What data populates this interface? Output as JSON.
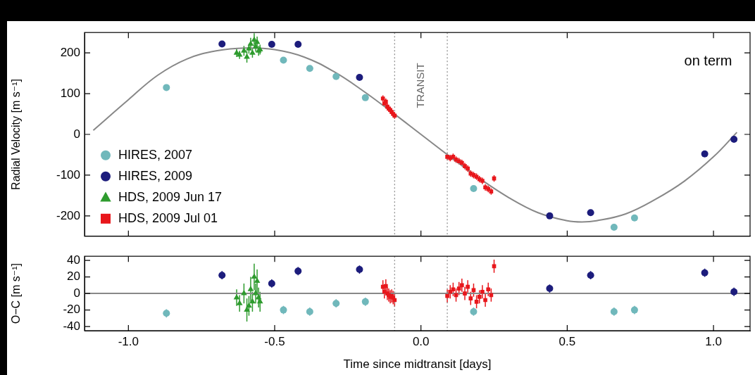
{
  "chart_data": [
    {
      "type": "scatter",
      "y_label": "Radial Velocity [m s⁻¹]",
      "xlim": [
        -1.15,
        1.125
      ],
      "xticks": [
        {
          "value": -1,
          "label": "-1.0"
        },
        {
          "value": -0.5,
          "label": "-0.5"
        },
        {
          "value": 0,
          "label": "0.0"
        },
        {
          "value": 0.5,
          "label": "0.5"
        },
        {
          "value": 1,
          "label": "1.0"
        }
      ],
      "ylim": [
        -250,
        250
      ],
      "yticks": [
        -200,
        -100,
        0,
        100,
        200
      ],
      "grid": false,
      "tick_labels": "y",
      "legend": "lower left",
      "vlines": {
        "x": [
          -0.09,
          0.09
        ],
        "label": "TRANSIT",
        "label_y": 120,
        "color": "#888888"
      },
      "annotations": [
        {
          "text": "on term",
          "x": 0.9,
          "y": 178
        }
      ],
      "model": {
        "color": "#888888",
        "x": [
          -1.12,
          -1.0,
          -0.9,
          -0.8,
          -0.7,
          -0.6,
          -0.5,
          -0.4,
          -0.3,
          -0.2,
          -0.1,
          0.0,
          0.1,
          0.2,
          0.3,
          0.4,
          0.5,
          0.55,
          0.6,
          0.7,
          0.8,
          0.9,
          1.0,
          1.08
        ],
        "values": [
          10,
          85,
          145,
          185,
          205,
          212,
          208,
          190,
          155,
          108,
          55,
          0,
          -55,
          -108,
          -155,
          -192,
          -212,
          -215,
          -212,
          -195,
          -160,
          -115,
          -55,
          5
        ]
      },
      "series": [
        {
          "name": "HIRES, 2007",
          "color": "#70b8bb",
          "marker": "circle",
          "x": [
            -0.87,
            -0.47,
            -0.38,
            -0.29,
            -0.19,
            0.18,
            0.66,
            0.73
          ],
          "values": [
            115,
            182,
            162,
            142,
            90,
            -133,
            -228,
            -205
          ],
          "errors": [
            5,
            5,
            5,
            5,
            5,
            5,
            5,
            5
          ]
        },
        {
          "name": "HIRES, 2009",
          "color": "#1c1c7c",
          "marker": "circle",
          "x": [
            -0.68,
            -0.51,
            -0.42,
            -0.21,
            0.44,
            0.58,
            0.97,
            1.07
          ],
          "values": [
            222,
            221,
            221,
            140,
            -200,
            -192,
            -48,
            -12
          ],
          "errors": [
            5,
            5,
            5,
            5,
            5,
            5,
            5,
            5
          ]
        },
        {
          "name": "HDS, 2009 Jun 17",
          "color": "#2e9b2e",
          "marker": "triangle",
          "x": [
            -0.63,
            -0.62,
            -0.605,
            -0.595,
            -0.588,
            -0.582,
            -0.576,
            -0.57,
            -0.565,
            -0.56,
            -0.555,
            -0.55
          ],
          "values": [
            200,
            195,
            205,
            190,
            210,
            222,
            200,
            232,
            215,
            226,
            205,
            208
          ],
          "errors": [
            10,
            10,
            12,
            14,
            12,
            15,
            12,
            16,
            12,
            14,
            12,
            12
          ]
        },
        {
          "name": "HDS, 2009 Jul 01",
          "color": "#e8161b",
          "marker": "square",
          "x": [
            -0.13,
            -0.125,
            -0.12,
            -0.115,
            -0.11,
            -0.105,
            -0.1,
            -0.095,
            -0.09,
            0.09,
            0.1,
            0.11,
            0.12,
            0.13,
            0.14,
            0.15,
            0.16,
            0.17,
            0.18,
            0.19,
            0.2,
            0.21,
            0.22,
            0.23,
            0.24,
            0.25
          ],
          "values": [
            88,
            76,
            80,
            68,
            63,
            60,
            55,
            50,
            46,
            -55,
            -58,
            -55,
            -62,
            -66,
            -70,
            -78,
            -84,
            -96,
            -100,
            -104,
            -110,
            -114,
            -130,
            -134,
            -140,
            -108
          ],
          "errors": [
            8,
            8,
            8,
            8,
            8,
            8,
            8,
            8,
            8,
            8,
            8,
            8,
            8,
            8,
            8,
            8,
            8,
            8,
            8,
            8,
            8,
            8,
            8,
            8,
            8,
            8
          ]
        }
      ]
    },
    {
      "type": "scatter",
      "x_label": "Time since midtransit [days]",
      "y_label": "O−C [m s⁻¹]",
      "xlim": [
        -1.15,
        1.125
      ],
      "xticks": [
        {
          "value": -1,
          "label": "-1.0"
        },
        {
          "value": -0.5,
          "label": "-0.5"
        },
        {
          "value": 0,
          "label": "0.0"
        },
        {
          "value": 0.5,
          "label": "0.5"
        },
        {
          "value": 1,
          "label": "1.0"
        }
      ],
      "ylim": [
        -45,
        45
      ],
      "yticks": [
        -40,
        -20,
        0,
        20,
        40
      ],
      "grid": false,
      "vlines": {
        "x": [
          -0.09,
          0.09
        ],
        "color": "#888888"
      },
      "model": {
        "color": "#888888",
        "x": [
          -1.15,
          1.125
        ],
        "values": [
          0,
          0
        ]
      },
      "series": [
        {
          "name": "HIRES, 2007",
          "color": "#70b8bb",
          "marker": "circle",
          "x": [
            -0.87,
            -0.47,
            -0.38,
            -0.29,
            -0.19,
            0.18,
            0.66,
            0.73
          ],
          "values": [
            -24,
            -20,
            -22,
            -12,
            -10,
            -22,
            -22,
            -20
          ],
          "errors": [
            5,
            5,
            5,
            5,
            5,
            5,
            5,
            5
          ]
        },
        {
          "name": "HIRES, 2009",
          "color": "#1c1c7c",
          "marker": "circle",
          "x": [
            -0.68,
            -0.51,
            -0.42,
            -0.21,
            0.44,
            0.58,
            0.97,
            1.07
          ],
          "values": [
            22,
            12,
            27,
            29,
            6,
            22,
            25,
            2
          ],
          "errors": [
            5,
            5,
            5,
            5,
            5,
            5,
            5,
            5
          ]
        },
        {
          "name": "HDS, 2009 Jun 17",
          "color": "#2e9b2e",
          "marker": "triangle",
          "x": [
            -0.63,
            -0.62,
            -0.605,
            -0.595,
            -0.588,
            -0.582,
            -0.576,
            -0.57,
            -0.565,
            -0.56,
            -0.555,
            -0.55
          ],
          "values": [
            -5,
            -12,
            0,
            -20,
            -15,
            5,
            -10,
            20,
            0,
            15,
            -5,
            -10
          ],
          "errors": [
            10,
            10,
            12,
            14,
            12,
            15,
            12,
            16,
            12,
            14,
            12,
            12
          ]
        },
        {
          "name": "HDS, 2009 Jul 01",
          "color": "#e8161b",
          "marker": "square",
          "x": [
            -0.13,
            -0.125,
            -0.12,
            -0.115,
            -0.11,
            -0.105,
            -0.1,
            -0.095,
            -0.09,
            0.09,
            0.1,
            0.11,
            0.12,
            0.13,
            0.14,
            0.15,
            0.16,
            0.17,
            0.18,
            0.19,
            0.2,
            0.21,
            0.22,
            0.23,
            0.24,
            0.25
          ],
          "values": [
            8,
            2,
            9,
            0,
            -2,
            -4,
            -3,
            -5,
            -8,
            -3,
            2,
            5,
            -2,
            6,
            10,
            0,
            8,
            -6,
            4,
            -10,
            -4,
            2,
            -8,
            5,
            -2,
            33
          ],
          "errors": [
            8,
            8,
            8,
            8,
            8,
            8,
            8,
            8,
            8,
            8,
            8,
            8,
            8,
            8,
            8,
            8,
            8,
            8,
            8,
            8,
            8,
            8,
            8,
            8,
            8,
            8
          ]
        }
      ]
    }
  ]
}
